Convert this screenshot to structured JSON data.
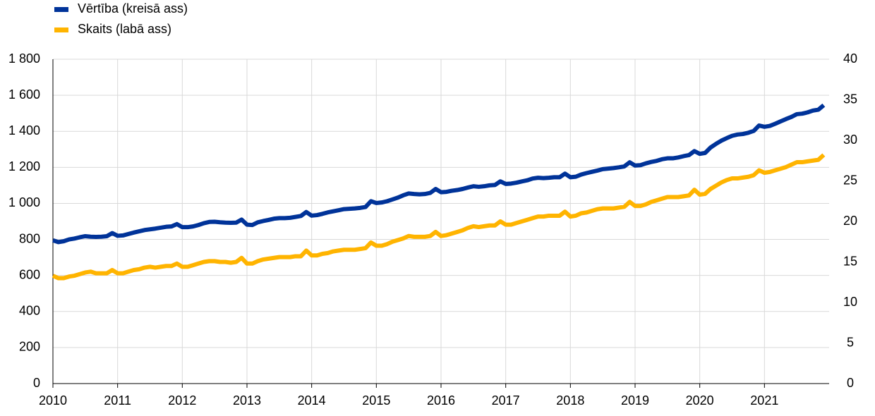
{
  "chart_data": {
    "type": "line",
    "legend": "top-left",
    "grid": true,
    "categories": [
      "2010",
      null,
      null,
      null,
      null,
      null,
      null,
      null,
      null,
      null,
      null,
      null,
      "2011",
      null,
      null,
      null,
      null,
      null,
      null,
      null,
      null,
      null,
      null,
      null,
      "2012",
      null,
      null,
      null,
      null,
      null,
      null,
      null,
      null,
      null,
      null,
      null,
      "2013",
      null,
      null,
      null,
      null,
      null,
      null,
      null,
      null,
      null,
      null,
      null,
      "2014",
      null,
      null,
      null,
      null,
      null,
      null,
      null,
      null,
      null,
      null,
      null,
      "2015",
      null,
      null,
      null,
      null,
      null,
      null,
      null,
      null,
      null,
      null,
      null,
      "2016",
      null,
      null,
      null,
      null,
      null,
      null,
      null,
      null,
      null,
      null,
      null,
      "2017",
      null,
      null,
      null,
      null,
      null,
      null,
      null,
      null,
      null,
      null,
      null,
      "2018",
      null,
      null,
      null,
      null,
      null,
      null,
      null,
      null,
      null,
      null,
      null,
      "2019",
      null,
      null,
      null,
      null,
      null,
      null,
      null,
      null,
      null,
      null,
      null,
      "2020",
      null,
      null,
      null,
      null,
      null,
      null,
      null,
      null,
      null,
      null,
      null,
      "2021",
      null,
      null,
      null,
      null,
      null,
      null,
      null,
      null,
      null,
      null,
      null
    ],
    "ylim": [
      0,
      1800
    ],
    "yticks": [
      0,
      200,
      400,
      600,
      800,
      {
        "value": 1000,
        "label": "1 000"
      },
      {
        "value": 1200,
        "label": "1 200"
      },
      {
        "value": 1400,
        "label": "1 400"
      },
      {
        "value": 1600,
        "label": "1 600"
      },
      {
        "value": 1800,
        "label": "1 800"
      }
    ],
    "y2lim": [
      0,
      40
    ],
    "y2ticks": [
      0,
      5,
      10,
      15,
      20,
      25,
      30,
      35,
      40
    ],
    "series": [
      {
        "name": "Vērtība (kreisā ass)",
        "color": "#003399",
        "values": [
          795,
          785,
          790,
          800,
          805,
          812,
          818,
          815,
          814,
          815,
          818,
          835,
          820,
          822,
          830,
          838,
          845,
          852,
          856,
          860,
          865,
          870,
          872,
          885,
          868,
          868,
          872,
          880,
          890,
          897,
          898,
          895,
          893,
          892,
          893,
          910,
          882,
          880,
          895,
          902,
          908,
          915,
          918,
          918,
          920,
          925,
          930,
          952,
          932,
          935,
          942,
          950,
          956,
          962,
          968,
          970,
          972,
          975,
          980,
          1012,
          1002,
          1005,
          1012,
          1022,
          1032,
          1045,
          1055,
          1052,
          1050,
          1052,
          1058,
          1080,
          1062,
          1064,
          1070,
          1074,
          1080,
          1088,
          1095,
          1092,
          1095,
          1100,
          1102,
          1122,
          1108,
          1110,
          1115,
          1122,
          1128,
          1138,
          1142,
          1140,
          1142,
          1145,
          1145,
          1165,
          1145,
          1148,
          1160,
          1168,
          1175,
          1182,
          1190,
          1193,
          1196,
          1200,
          1205,
          1228,
          1210,
          1212,
          1222,
          1230,
          1236,
          1245,
          1250,
          1250,
          1255,
          1262,
          1268,
          1290,
          1275,
          1280,
          1310,
          1330,
          1348,
          1362,
          1375,
          1382,
          1385,
          1392,
          1402,
          1432,
          1425,
          1430,
          1442,
          1455,
          1468,
          1480,
          1495,
          1498,
          1505,
          1515,
          1520,
          1545
        ]
      },
      {
        "name": "Skaits (labā ass)",
        "color": "#ffb400",
        "axis": "y2",
        "values": [
          13.3,
          13.0,
          13.0,
          13.2,
          13.3,
          13.5,
          13.7,
          13.8,
          13.6,
          13.6,
          13.6,
          14.0,
          13.6,
          13.6,
          13.8,
          14.0,
          14.1,
          14.3,
          14.4,
          14.3,
          14.4,
          14.5,
          14.5,
          14.8,
          14.4,
          14.4,
          14.6,
          14.8,
          15.0,
          15.1,
          15.1,
          15.0,
          15.0,
          14.9,
          15.0,
          15.5,
          14.8,
          14.8,
          15.1,
          15.3,
          15.4,
          15.5,
          15.6,
          15.6,
          15.6,
          15.7,
          15.7,
          16.4,
          15.8,
          15.8,
          16.0,
          16.1,
          16.3,
          16.4,
          16.5,
          16.5,
          16.5,
          16.6,
          16.7,
          17.4,
          17.0,
          17.0,
          17.2,
          17.5,
          17.7,
          17.9,
          18.2,
          18.1,
          18.1,
          18.1,
          18.2,
          18.7,
          18.2,
          18.3,
          18.5,
          18.7,
          18.9,
          19.2,
          19.4,
          19.3,
          19.4,
          19.5,
          19.5,
          20.0,
          19.6,
          19.6,
          19.8,
          20.0,
          20.2,
          20.4,
          20.6,
          20.6,
          20.7,
          20.7,
          20.7,
          21.2,
          20.6,
          20.7,
          21.0,
          21.1,
          21.3,
          21.5,
          21.6,
          21.6,
          21.6,
          21.7,
          21.8,
          22.4,
          21.9,
          21.9,
          22.1,
          22.4,
          22.6,
          22.8,
          23.0,
          23.0,
          23.0,
          23.1,
          23.2,
          23.9,
          23.3,
          23.4,
          24.0,
          24.4,
          24.8,
          25.1,
          25.3,
          25.3,
          25.4,
          25.5,
          25.7,
          26.3,
          26.0,
          26.1,
          26.3,
          26.5,
          26.7,
          27.0,
          27.3,
          27.3,
          27.4,
          27.5,
          27.6,
          28.2
        ]
      }
    ]
  }
}
